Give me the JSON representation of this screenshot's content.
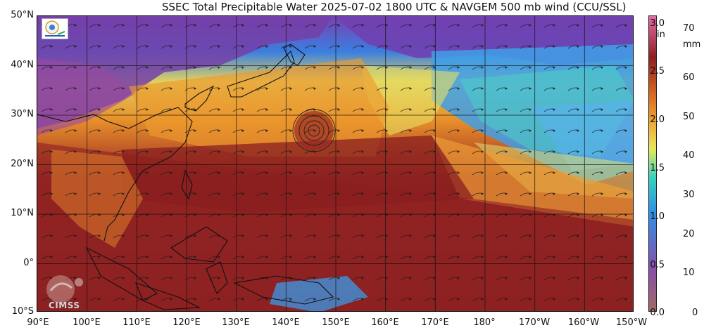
{
  "title": "SSEC Total Precipitable Water  2025-07-02 1800 UTC & NAVGEM 500 mb wind (CCU/SSL)",
  "latitude_labels": [
    "50°N",
    "40°N",
    "30°N",
    "20°N",
    "10°N",
    "0°",
    "10°S"
  ],
  "longitude_labels": [
    "90°E",
    "100°E",
    "110°E",
    "120°E",
    "130°E",
    "140°E",
    "150°E",
    "160°E",
    "170°E",
    "180°",
    "170°W",
    "160°W",
    "150°W"
  ],
  "colorbar": {
    "inch_unit": "in",
    "mm_unit": "mm",
    "inch_ticks": [
      "3.0",
      "2.5",
      "2.0",
      "1.5",
      "1.0",
      "0.5",
      "0.0"
    ],
    "mm_ticks": [
      "70",
      "60",
      "50",
      "40",
      "30",
      "20",
      "10",
      "0"
    ],
    "colors": [
      "#a06a66",
      "#8a4fa8",
      "#2e8fe6",
      "#38d0c0",
      "#e8e85a",
      "#f0a030",
      "#d06020",
      "#8c2020",
      "#e46aa6"
    ]
  },
  "logos": {
    "cimss_text": "CIMSS"
  }
}
